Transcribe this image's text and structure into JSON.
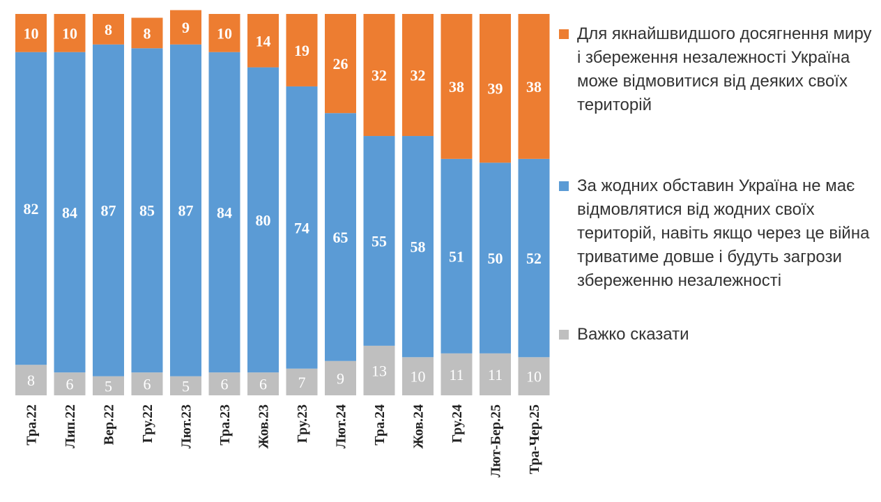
{
  "chart_data": {
    "type": "bar",
    "stacked": true,
    "categories": [
      "Тра.22",
      "Лип.22",
      "Вер.22",
      "Гру.22",
      "Лют.23",
      "Тра.23",
      "Жов.23",
      "Гру.23",
      "Лют.24",
      "Тра.24",
      "Жов.24",
      "Гру.24",
      "Лют-Бер.25",
      "Тра-Чер.25"
    ],
    "series": [
      {
        "name": "Важко сказати",
        "color": "#bfbfbf",
        "values": [
          8,
          6,
          5,
          6,
          5,
          6,
          6,
          7,
          9,
          13,
          10,
          11,
          11,
          10
        ]
      },
      {
        "name": "За жодних обставин Україна не має відмовлятися від жодних своїх територій, навіть якщо через це війна триватиме довше і будуть загрози збереженню незалежності",
        "color": "#5b9bd5",
        "values": [
          82,
          84,
          87,
          85,
          87,
          84,
          80,
          74,
          65,
          55,
          58,
          51,
          50,
          52
        ]
      },
      {
        "name": "Для якнайшвидшого досягнення миру і збереження незалежності Україна може відмовитися від деяких своїх територій",
        "color": "#ed7d31",
        "values": [
          10,
          10,
          8,
          8,
          9,
          10,
          14,
          19,
          26,
          32,
          32,
          38,
          39,
          38
        ]
      }
    ],
    "ylim": [
      0,
      100
    ],
    "grid": false,
    "legend_position": "right"
  },
  "legend": [
    {
      "text": "Для якнайшвидшого досягнення миру і збереження незалежності Україна може відмовитися від деяких своїх територій",
      "color": "#ed7d31"
    },
    {
      "text": "За жодних обставин Україна не має відмовлятися від жодних своїх територій, навіть якщо через це війна триватиме довше і будуть загрози збереженню незалежності",
      "color": "#5b9bd5"
    },
    {
      "text": "Важко сказати",
      "color": "#bfbfbf"
    }
  ]
}
